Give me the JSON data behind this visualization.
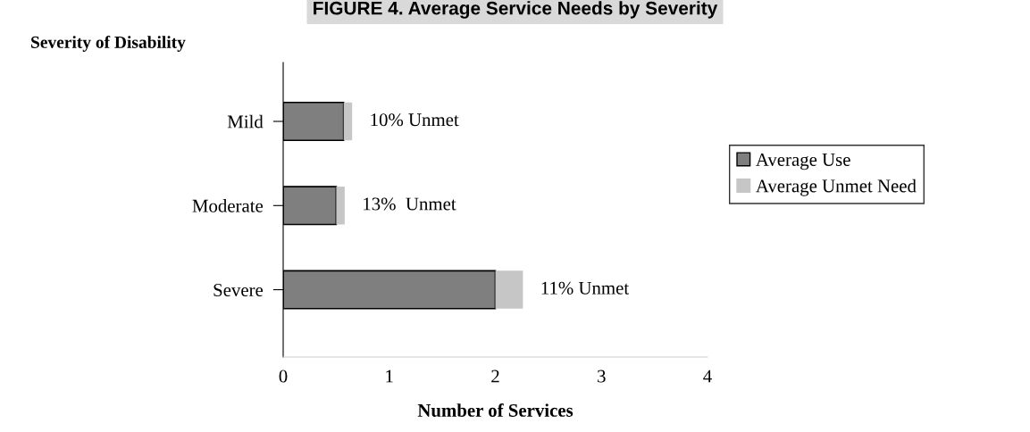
{
  "chart_data": {
    "type": "bar",
    "orientation": "horizontal",
    "stacked": true,
    "title": "FIGURE 4. Average Service Needs by Severity",
    "ylabel": "Severity of Disability",
    "xlabel": "Number of Services",
    "categories": [
      "Mild",
      "Moderate",
      "Severe"
    ],
    "series": [
      {
        "name": "Average Use",
        "color": "#7f7f7f",
        "values": [
          0.57,
          0.5,
          2.0
        ]
      },
      {
        "name": "Average Unmet Need",
        "color": "#c6c6c6",
        "values": [
          0.08,
          0.08,
          0.26
        ]
      }
    ],
    "xlim": [
      0,
      4
    ],
    "xticks": [
      0,
      1,
      2,
      3,
      4
    ],
    "grid": false,
    "legend": "right",
    "annotations": [
      {
        "text": "10% Unmet",
        "x": 0.65,
        "y": "Mild"
      },
      {
        "text": "13%  Unmet",
        "x": 0.58,
        "y": "Moderate"
      },
      {
        "text": "11% Unmet",
        "x": 2.26,
        "y": "Severe"
      }
    ]
  }
}
